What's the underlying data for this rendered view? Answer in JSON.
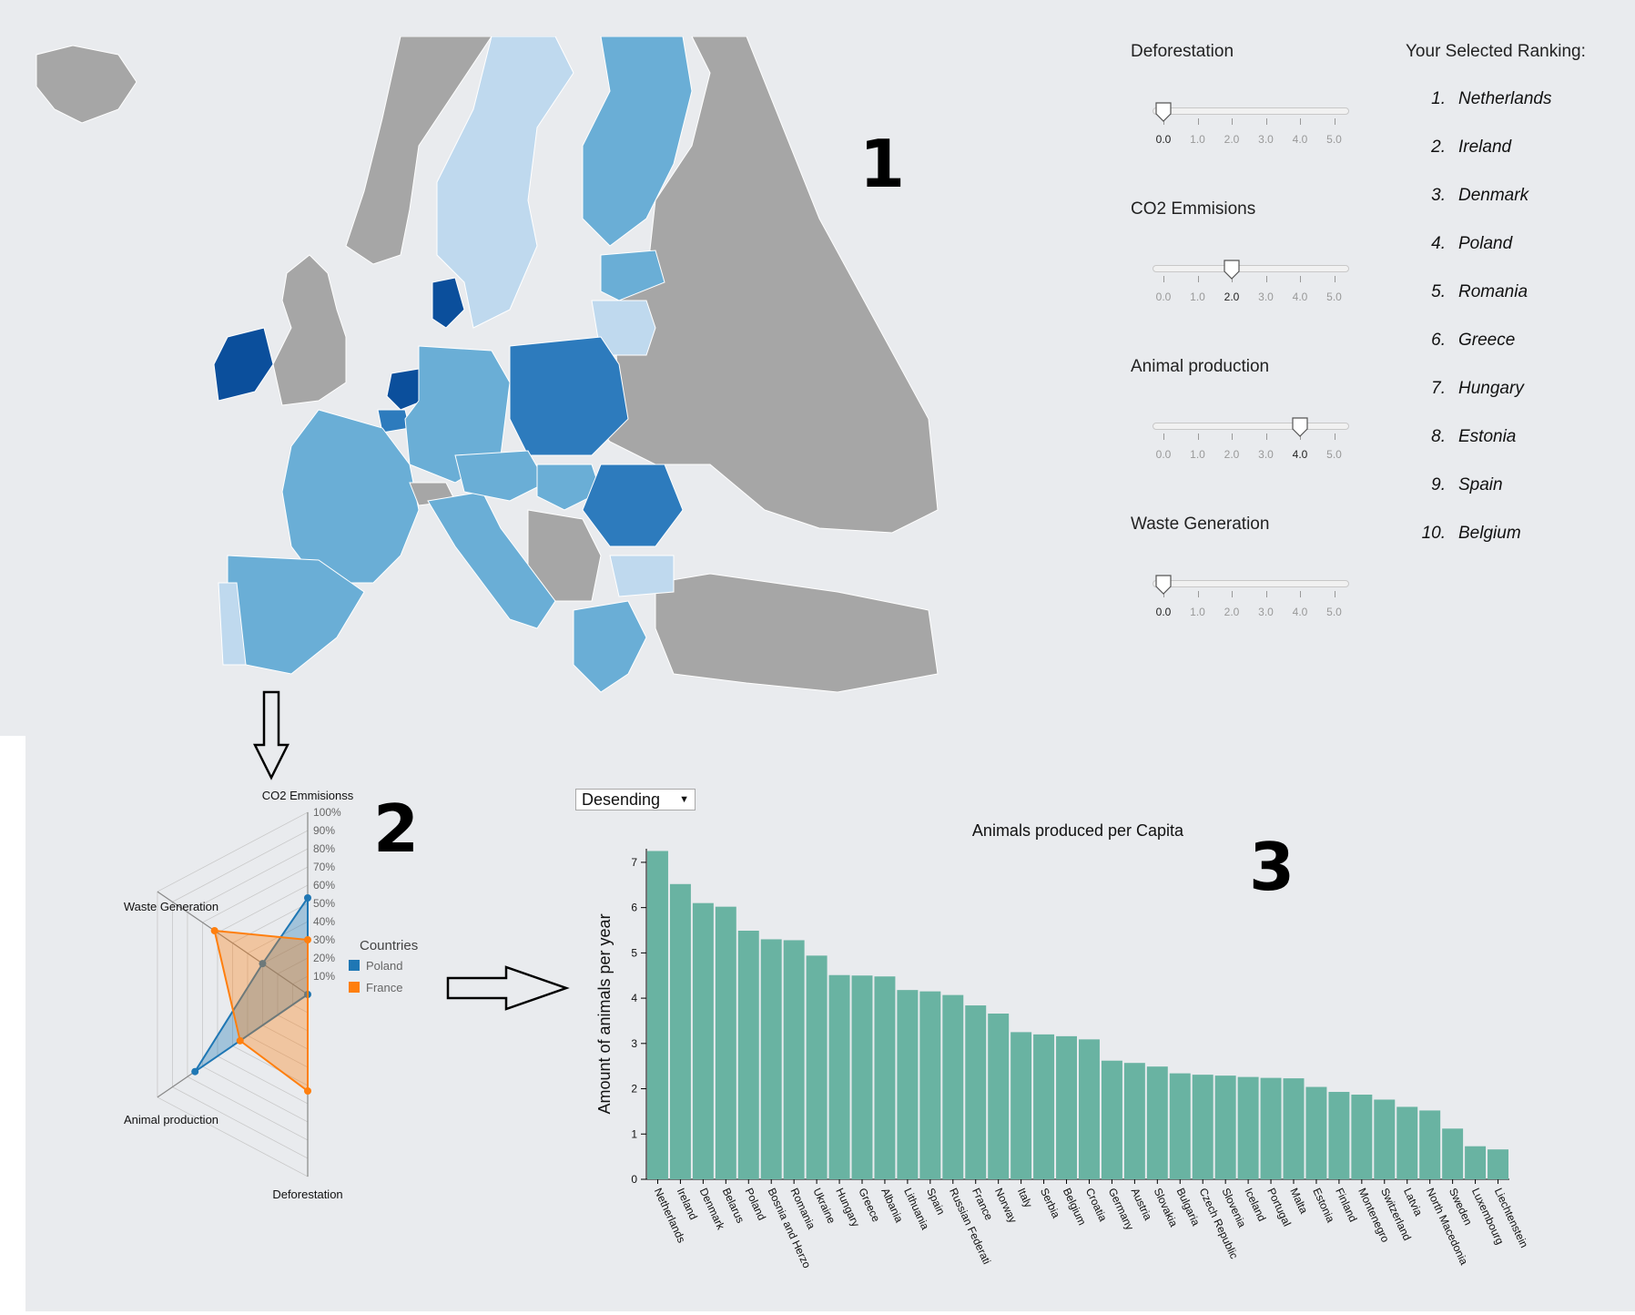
{
  "labels": {
    "section1": "1",
    "section2": "2",
    "section3": "3"
  },
  "sliders": [
    {
      "title": "Deforestation",
      "value": 0.0
    },
    {
      "title": "CO2 Emmisions",
      "value": 2.0
    },
    {
      "title": "Animal production",
      "value": 4.0
    },
    {
      "title": "Waste Generation",
      "value": 0.0
    }
  ],
  "slider_ticks": [
    "0.0",
    "1.0",
    "2.0",
    "3.0",
    "4.0",
    "5.0"
  ],
  "ranking": {
    "title": "Your Selected Ranking:",
    "items": [
      {
        "num": "1.",
        "country": "Netherlands"
      },
      {
        "num": "2.",
        "country": "Ireland"
      },
      {
        "num": "3.",
        "country": "Denmark"
      },
      {
        "num": "4.",
        "country": "Poland"
      },
      {
        "num": "5.",
        "country": "Romania"
      },
      {
        "num": "6.",
        "country": "Greece"
      },
      {
        "num": "7.",
        "country": "Hungary"
      },
      {
        "num": "8.",
        "country": "Estonia"
      },
      {
        "num": "9.",
        "country": "Spain"
      },
      {
        "num": "10.",
        "country": "Belgium"
      }
    ]
  },
  "map": {
    "colors": {
      "dark": "#0b4f9c",
      "mid": "#2d7bbd",
      "light": "#6aaed6",
      "pale": "#bfd9ee",
      "grey": "#a6a6a6"
    }
  },
  "radar": {
    "axes": [
      "CO2 Emmisionss",
      "Deforestation",
      "Animal production",
      "Waste Generation"
    ],
    "rings": [
      "100%",
      "90%",
      "80%",
      "70%",
      "60%",
      "50%",
      "40%",
      "30%",
      "20%",
      "10%"
    ],
    "legend_title": "Countries",
    "series": [
      {
        "name": "Poland",
        "color": "#1f77b4",
        "values": [
          0.53,
          0.0,
          0.75,
          0.3
        ]
      },
      {
        "name": "France",
        "color": "#ff7f0e",
        "values": [
          0.3,
          0.53,
          0.45,
          0.62
        ]
      }
    ]
  },
  "dropdown": {
    "selected": "Desending"
  },
  "chart_data": {
    "type": "bar",
    "title": "Animals produced per Capita",
    "xlabel": "",
    "ylabel": "Amount of animals per year",
    "ylim": [
      0,
      7.3
    ],
    "yticks": [
      0,
      1,
      2,
      3,
      4,
      5,
      6,
      7
    ],
    "color": "#69b3a2",
    "categories": [
      "Netherlands",
      "Ireland",
      "Denmark",
      "Belarus",
      "Poland",
      "Bosnia and Herzegovina",
      "Romania",
      "Ukraine",
      "Hungary",
      "Greece",
      "Albania",
      "Lithuania",
      "Spain",
      "Russian Federation",
      "France",
      "Norway",
      "Italy",
      "Serbia",
      "Belgium",
      "Croatia",
      "Germany",
      "Austria",
      "Slovakia",
      "Bulgaria",
      "Czech Republic",
      "Slovenia",
      "Iceland",
      "Portugal",
      "Malta",
      "Estonia",
      "Finland",
      "Montenegro",
      "Switzerland",
      "Latvia",
      "North Macedonia",
      "Sweden",
      "Luxembourg",
      "Liechtenstein"
    ],
    "category_labels": [
      "Netherlands",
      "Ireland",
      "Denmark",
      "Belarus",
      "Poland",
      "Bosnia and Herzo",
      "Romania",
      "Ukraine",
      "Hungary",
      "Greece",
      "Albania",
      "Lithuania",
      "Spain",
      "Russian Federati",
      "France",
      "Norway",
      "Italy",
      "Serbia",
      "Belgium",
      "Croatia",
      "Germany",
      "Austria",
      "Slovakia",
      "Bulgaria",
      "Czech Republic",
      "Slovenia",
      "Iceland",
      "Portugal",
      "Malta",
      "Estonia",
      "Finland",
      "Montenegro",
      "Switzerland",
      "Latvia",
      "North Macedonia",
      "Sweden",
      "Luxembourg",
      "Liechtenstein"
    ],
    "values": [
      7.25,
      6.52,
      6.1,
      6.02,
      5.49,
      5.3,
      5.28,
      4.94,
      4.51,
      4.5,
      4.48,
      4.18,
      4.15,
      4.07,
      3.84,
      3.66,
      3.25,
      3.2,
      3.16,
      3.09,
      2.62,
      2.57,
      2.49,
      2.34,
      2.31,
      2.29,
      2.26,
      2.24,
      2.23,
      2.04,
      1.93,
      1.87,
      1.76,
      1.6,
      1.52,
      1.12,
      0.73,
      0.66
    ]
  }
}
